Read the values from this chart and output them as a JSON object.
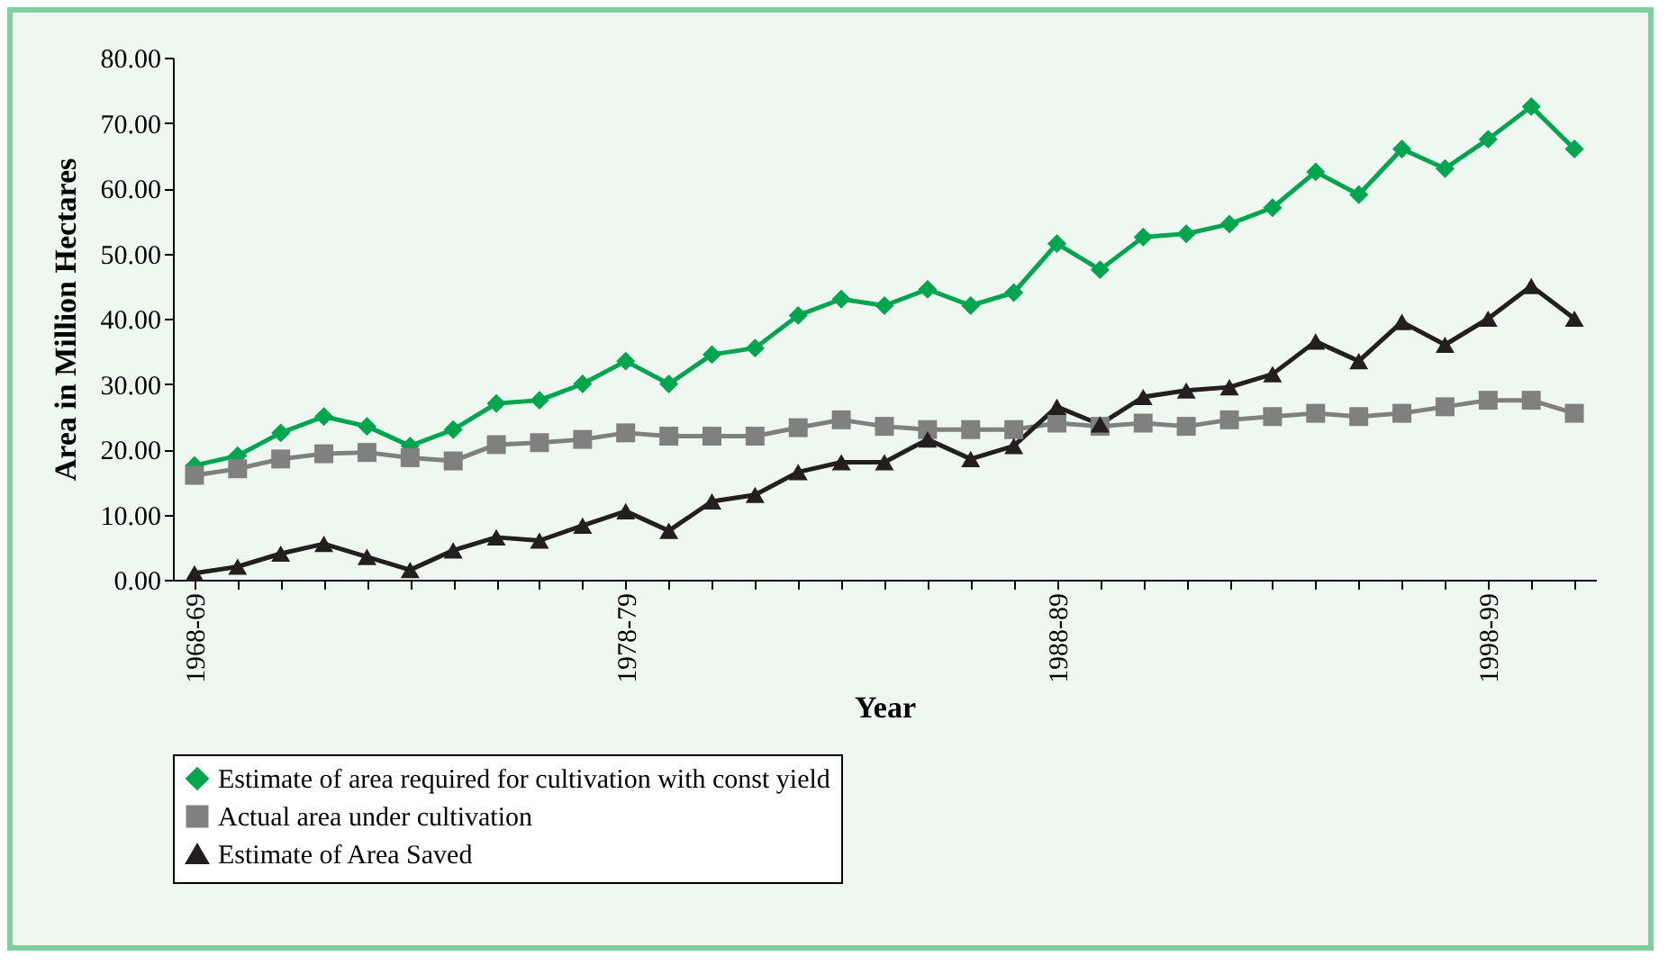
{
  "chart_data": {
    "type": "line",
    "xlabel": "Year",
    "ylabel": "Area in Million Hectares",
    "categories": [
      "1968-69",
      null,
      null,
      null,
      null,
      null,
      null,
      null,
      null,
      null,
      "1978-79",
      null,
      null,
      null,
      null,
      null,
      null,
      null,
      null,
      null,
      "1988-89",
      null,
      null,
      null,
      null,
      null,
      null,
      null,
      null,
      null,
      "1998-99",
      null,
      null
    ],
    "ylim": [
      0,
      80
    ],
    "yticks": [
      {
        "value": 0,
        "label": "0.00"
      },
      {
        "value": 10,
        "label": "10.00"
      },
      {
        "value": 20,
        "label": "20.00"
      },
      {
        "value": 30,
        "label": "30.00"
      },
      {
        "value": 40,
        "label": "40.00"
      },
      {
        "value": 50,
        "label": "50.00"
      },
      {
        "value": 60,
        "label": "60.00"
      },
      {
        "value": 70,
        "label": "70.00"
      },
      {
        "value": 80,
        "label": "80.00"
      }
    ],
    "grid": false,
    "legend": "bottom",
    "series": [
      {
        "name": "Estimate of area required for cultivation with const yield",
        "color": "#00a550",
        "marker": "diamond",
        "values": [
          17.5,
          19,
          22.5,
          25,
          23.5,
          20.5,
          23,
          27,
          27.5,
          30,
          33.5,
          30,
          34.5,
          35.5,
          40.5,
          43,
          42,
          44.5,
          42,
          44,
          51.5,
          47.5,
          52.5,
          53,
          54.5,
          57,
          62.5,
          59,
          66,
          63,
          67.5,
          72.5,
          66
        ]
      },
      {
        "name": "Actual area under cultivation",
        "color": "#808080",
        "marker": "square",
        "values": [
          16,
          17,
          18.5,
          19.3,
          19.5,
          18.7,
          18.2,
          20.7,
          21,
          21.5,
          22.5,
          22,
          22,
          22,
          23.3,
          24.5,
          23.5,
          23,
          23,
          23,
          24,
          23.5,
          24,
          23.5,
          24.5,
          25,
          25.5,
          25,
          25.5,
          26.5,
          27.5,
          27.5,
          25.5
        ]
      },
      {
        "name": "Estimate of Area Saved",
        "color": "#231f20",
        "marker": "triangle",
        "values": [
          1,
          2,
          4,
          5.5,
          3.5,
          1.5,
          4.5,
          6.5,
          6,
          8.3,
          10.5,
          7.5,
          12,
          13,
          16.5,
          18,
          18,
          21.5,
          18.5,
          20.5,
          26.5,
          23.8,
          28,
          29,
          29.5,
          31.5,
          36.5,
          33.5,
          39.5,
          36,
          40,
          45,
          40
        ]
      }
    ]
  }
}
